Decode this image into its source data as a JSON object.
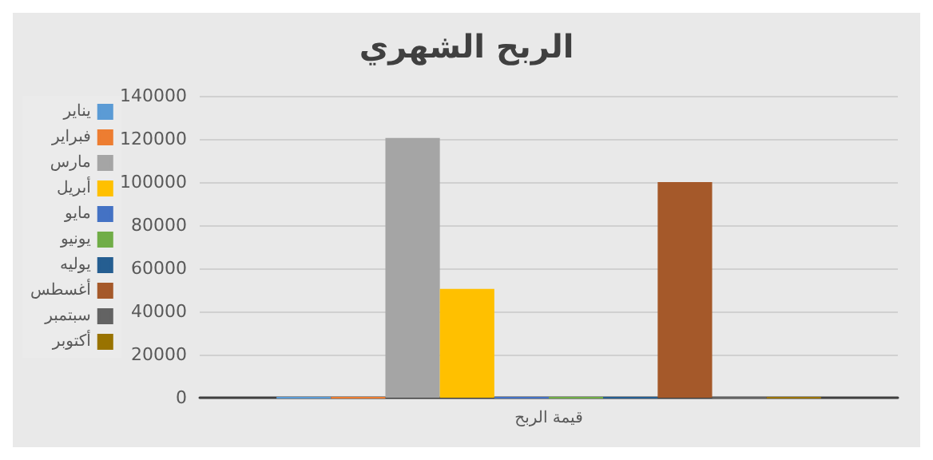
{
  "chart_data": {
    "type": "bar",
    "title": "الربح الشهري",
    "categories": [
      "قيمة الربح"
    ],
    "series": [
      {
        "name": "يناير",
        "color": "#5b9bd5",
        "values": [
          0
        ]
      },
      {
        "name": "فبراير",
        "color": "#ed7d31",
        "values": [
          0
        ]
      },
      {
        "name": "مارس",
        "color": "#a5a5a5",
        "values": [
          120500
        ]
      },
      {
        "name": "أبريل",
        "color": "#ffc000",
        "values": [
          50500
        ]
      },
      {
        "name": "مايو",
        "color": "#4472c4",
        "values": [
          0
        ]
      },
      {
        "name": "يونيو",
        "color": "#70ad47",
        "values": [
          0
        ]
      },
      {
        "name": "يوليه",
        "color": "#255e91",
        "values": [
          0
        ]
      },
      {
        "name": "أغسطس",
        "color": "#a5592a",
        "values": [
          100000
        ]
      },
      {
        "name": "سبتمبر",
        "color": "#636363",
        "values": [
          0
        ]
      },
      {
        "name": "أكتوبر",
        "color": "#997300",
        "values": [
          0
        ]
      }
    ],
    "ylim": [
      0,
      140000
    ],
    "yticks": [
      0,
      20000,
      40000,
      60000,
      80000,
      100000,
      120000,
      140000
    ],
    "grid": "y",
    "legend": "left"
  }
}
